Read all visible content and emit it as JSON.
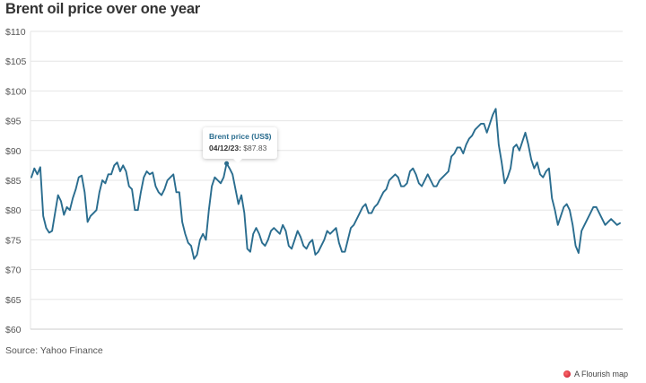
{
  "title": "Brent oil price over one year",
  "source": "Source: Yahoo Finance",
  "branding": "A Flourish map",
  "tooltip": {
    "title": "Brent price (US$)",
    "date": "04/12/23:",
    "value": "$87.83"
  },
  "colors": {
    "line": "#2a6d8f",
    "grid": "#e6e6e6",
    "brand_dot": "#d0182f"
  },
  "chart_data": {
    "type": "line",
    "title": "Brent oil price over one year",
    "xlabel": "",
    "ylabel": "",
    "ylim": [
      60,
      110
    ],
    "y_ticks": [
      110,
      105,
      100,
      95,
      90,
      85,
      80,
      75,
      70,
      65,
      60
    ],
    "y_tick_labels": [
      "$110",
      "$105",
      "$100",
      "$95",
      "$90",
      "$85",
      "$80",
      "$75",
      "$70",
      "$65",
      "$60"
    ],
    "grid": true,
    "highlight": {
      "date": "04/12/23",
      "value": 87.83
    },
    "series": [
      {
        "values": [
          85.5,
          87,
          86,
          87.2,
          79,
          77,
          76.2,
          76.5,
          79.5,
          82.5,
          81.5,
          79.2,
          80.5,
          80,
          82,
          83.5,
          85.5,
          85.8,
          83,
          78,
          79,
          79.5,
          80,
          83,
          85,
          84.5,
          86,
          86,
          87.5,
          88,
          86.5,
          87.5,
          86.5,
          84,
          83.5,
          80,
          80,
          83,
          85.5,
          86.5,
          86,
          86.3,
          84,
          83,
          82.5,
          83.5,
          85,
          85.5,
          86,
          83,
          83,
          78,
          76,
          74.5,
          74,
          71.8,
          72.5,
          75,
          76,
          75,
          80,
          84,
          85.5,
          85,
          84.5,
          85.5,
          87.83,
          87,
          86,
          83.5,
          81,
          82.5,
          79.5,
          73.5,
          73,
          76,
          77,
          76,
          74.5,
          74,
          75,
          76.5,
          77,
          76.5,
          76,
          77.5,
          76.5,
          74,
          73.5,
          75,
          76.5,
          75.5,
          74,
          73.5,
          74.5,
          75,
          72.5,
          73,
          74,
          75,
          76.5,
          76,
          76.5,
          77,
          74.5,
          73,
          73,
          75,
          77,
          77.5,
          78.5,
          79.5,
          80.5,
          81,
          79.5,
          79.5,
          80.5,
          81,
          82,
          83,
          83.5,
          85,
          85.5,
          86,
          85.5,
          84,
          84,
          84.5,
          86.5,
          87,
          86,
          84.5,
          84,
          85,
          86,
          85,
          84,
          84,
          85,
          85.5,
          86,
          86.5,
          89,
          89.5,
          90.5,
          90.5,
          89.5,
          91,
          92,
          92.5,
          93.5,
          94,
          94.5,
          94.5,
          93,
          94.5,
          96,
          97,
          91,
          88,
          84.5,
          85.5,
          87,
          90.5,
          91,
          90,
          91.5,
          93,
          91,
          88.5,
          87,
          88,
          86,
          85.5,
          86.5,
          87,
          82,
          80,
          77.5,
          79,
          80.5,
          81,
          80,
          77.5,
          74,
          72.8,
          76.5,
          77.5,
          78.5,
          79.5,
          80.5,
          80.5,
          79.5,
          78.5,
          77.5,
          78,
          78.5,
          78,
          77.5,
          77.8
        ]
      }
    ]
  }
}
